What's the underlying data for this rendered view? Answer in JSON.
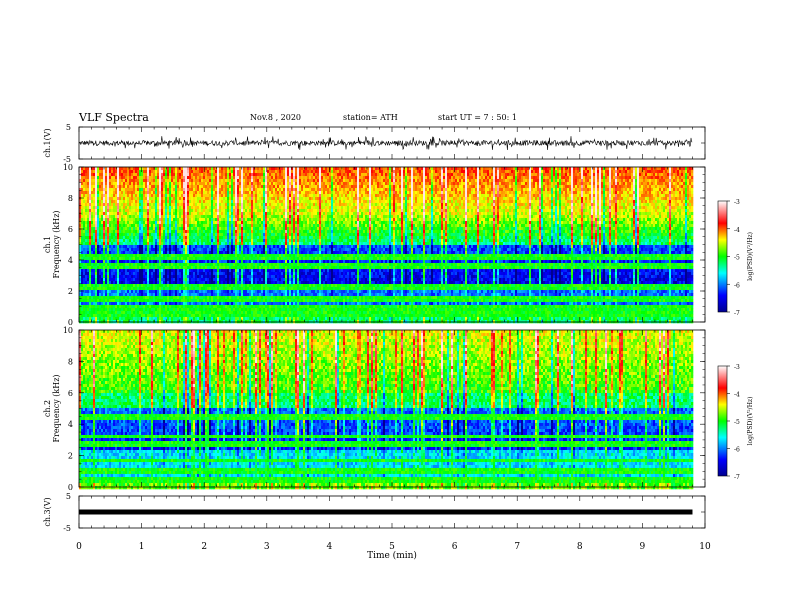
{
  "header": {
    "title": "VLF Spectra",
    "date": "Nov.8 , 2020",
    "station": "station= ATH",
    "start": "start UT = 7 : 50: 1"
  },
  "chart_data": [
    {
      "type": "line",
      "name": "ch1-waveform",
      "ylabel": "ch.1(V)",
      "ylim": [
        -5,
        5
      ],
      "yticks": [
        "5",
        "-5"
      ],
      "xlim": [
        0,
        10
      ],
      "description_visible": "noisy signal roughly between -2 and 2 V"
    },
    {
      "type": "heatmap",
      "ylabel_line1": "ch.1",
      "ylabel_line2": "Frequency (kHz)",
      "ylim": [
        0,
        10
      ],
      "yticks": [
        "0",
        "2",
        "4",
        "6",
        "8",
        "10"
      ],
      "xlim": [
        0,
        9.8
      ],
      "colorbar": {
        "label": "log(PSD)(V²/Hz)",
        "range": [
          -7,
          -3
        ],
        "ticks": [
          "-3",
          "-4",
          "-5",
          "-6",
          "-7"
        ]
      }
    },
    {
      "type": "heatmap",
      "ylabel_line1": "ch.2",
      "ylabel_line2": "Frequency (kHz)",
      "ylim": [
        0,
        10
      ],
      "yticks": [
        "0",
        "2",
        "4",
        "6",
        "8",
        "10"
      ],
      "xlim": [
        0,
        9.8
      ],
      "colorbar": {
        "label": "log(PSD)(V²/Hz)",
        "range": [
          -7,
          -3
        ],
        "ticks": [
          "-3",
          "-4",
          "-5",
          "-6",
          "-7"
        ]
      }
    },
    {
      "type": "line",
      "name": "ch3-waveform",
      "ylabel": "ch.3(V)",
      "ylim": [
        -5,
        5
      ],
      "yticks": [
        "5",
        "-5"
      ],
      "level": 0
    }
  ],
  "xaxis": {
    "label": "Time (min)",
    "ticks": [
      "0",
      "1",
      "2",
      "3",
      "4",
      "5",
      "6",
      "7",
      "8",
      "9",
      "10"
    ]
  }
}
